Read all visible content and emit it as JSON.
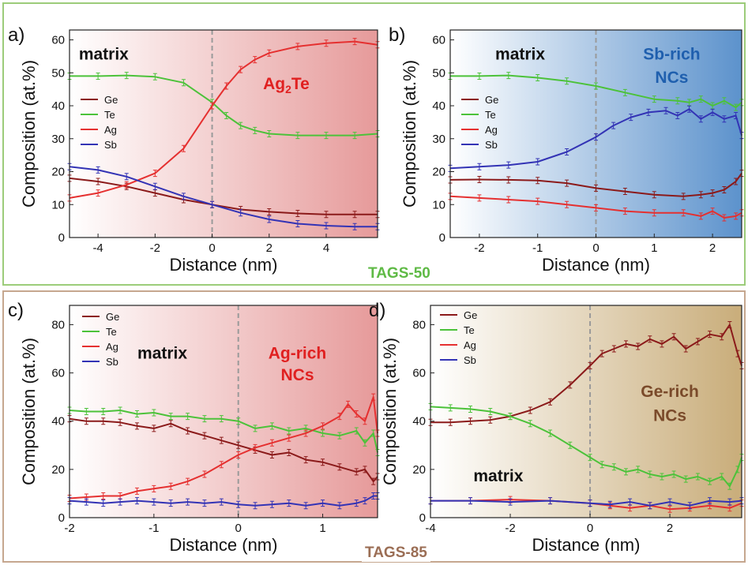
{
  "groups": [
    {
      "label": "TAGS-50",
      "color": "#5fba46"
    },
    {
      "label": "TAGS-85",
      "color": "#9b6e55"
    }
  ],
  "colors": {
    "Ge": "#8b1a1a",
    "Te": "#4cc23a",
    "Ag": "#e53030",
    "Sb": "#3333b5",
    "divider": "#9a9a9a"
  },
  "chart_data": [
    {
      "panel": "a)",
      "type": "line",
      "xlabel": "Distance (nm)",
      "ylabel": "Composition (at.%)",
      "xlim": [
        -5,
        5.8
      ],
      "ylim": [
        0,
        63
      ],
      "xticks": [
        -4,
        -2,
        0,
        2,
        4
      ],
      "yticks": [
        0,
        10,
        20,
        30,
        40,
        50,
        60
      ],
      "background": {
        "left": "#ffffff",
        "right": "#e69a9a"
      },
      "annotations": [
        {
          "text": "matrix",
          "x": -3.8,
          "y": 54,
          "color": "#111111"
        },
        {
          "text": "Ag",
          "sub": "2",
          "tail": "Te",
          "x": 2.6,
          "y": 45,
          "color": "#e02020"
        }
      ],
      "legend": {
        "placement": "mid-left",
        "entries": [
          "Ge",
          "Te",
          "Ag",
          "Sb"
        ]
      },
      "series": [
        {
          "name": "Ge",
          "x": [
            -5,
            -4,
            -3,
            -2,
            -1,
            0,
            1,
            2,
            3,
            4,
            5,
            5.8
          ],
          "values": [
            18,
            17,
            15.5,
            13.5,
            11.5,
            10,
            8.5,
            7.8,
            7.3,
            7,
            7,
            7
          ]
        },
        {
          "name": "Te",
          "x": [
            -5,
            -4,
            -3,
            -2,
            -1,
            0,
            0.5,
            1,
            1.5,
            2,
            3,
            4,
            5,
            5.8
          ],
          "values": [
            49,
            49,
            49.2,
            48.8,
            47,
            41,
            37,
            34,
            32.5,
            31.5,
            31,
            31,
            31,
            31.5
          ]
        },
        {
          "name": "Ag",
          "x": [
            -5,
            -4,
            -3,
            -2,
            -1,
            0,
            0.5,
            1,
            1.5,
            2,
            3,
            4,
            5,
            5.8
          ],
          "values": [
            12,
            13.5,
            16,
            19.5,
            27,
            40,
            46,
            51,
            54,
            56,
            58,
            59,
            59.5,
            58.5
          ]
        },
        {
          "name": "Sb",
          "x": [
            -5,
            -4,
            -3,
            -2,
            -1,
            0,
            1,
            2,
            3,
            4,
            5,
            5.8
          ],
          "values": [
            21.5,
            20.5,
            18.5,
            15.5,
            12.5,
            10,
            7.5,
            5.5,
            4.2,
            3.6,
            3.3,
            3.3
          ]
        }
      ]
    },
    {
      "panel": "b)",
      "type": "line",
      "xlabel": "Distance (nm)",
      "ylabel": "Composition (at.%)",
      "xlim": [
        -2.5,
        2.5
      ],
      "ylim": [
        0,
        63
      ],
      "xticks": [
        -2,
        -1,
        0,
        1,
        2
      ],
      "yticks": [
        0,
        10,
        20,
        30,
        40,
        50,
        60
      ],
      "background": {
        "left": "#ffffff",
        "right": "#5c92cc"
      },
      "annotations": [
        {
          "text": "matrix",
          "x": -1.3,
          "y": 54,
          "color": "#111111"
        },
        {
          "text": "Sb-rich",
          "x": 1.3,
          "y": 54,
          "color": "#1f5fae"
        },
        {
          "text": "NCs",
          "x": 1.3,
          "y": 47,
          "color": "#1f5fae"
        }
      ],
      "legend": {
        "placement": "mid-left",
        "entries": [
          "Ge",
          "Te",
          "Ag",
          "Sb"
        ]
      },
      "series": [
        {
          "name": "Ge",
          "x": [
            -2.5,
            -2,
            -1.5,
            -1,
            -0.5,
            0,
            0.5,
            1,
            1.5,
            1.8,
            2,
            2.2,
            2.4,
            2.5
          ],
          "values": [
            17.5,
            17.6,
            17.5,
            17.3,
            16.5,
            15,
            14,
            13,
            12.5,
            13,
            13.5,
            14.5,
            17,
            19.5
          ]
        },
        {
          "name": "Te",
          "x": [
            -2.5,
            -2,
            -1.5,
            -1,
            -0.5,
            0,
            0.5,
            1,
            1.4,
            1.6,
            1.8,
            2,
            2.2,
            2.4,
            2.5
          ],
          "values": [
            49,
            49,
            49.2,
            48.5,
            47.5,
            46,
            44,
            42,
            41.5,
            41,
            42,
            40,
            41.5,
            39.5,
            41
          ]
        },
        {
          "name": "Ag",
          "x": [
            -2.5,
            -2,
            -1.5,
            -1,
            -0.5,
            0,
            0.5,
            1,
            1.5,
            1.8,
            2,
            2.2,
            2.4,
            2.5
          ],
          "values": [
            12.5,
            12,
            11.5,
            11,
            10,
            9,
            8,
            7.5,
            7.5,
            6.5,
            8,
            6,
            6.5,
            7.5
          ]
        },
        {
          "name": "Sb",
          "x": [
            -2.5,
            -2,
            -1.5,
            -1,
            -0.5,
            0,
            0.3,
            0.6,
            0.9,
            1.2,
            1.4,
            1.6,
            1.8,
            2,
            2.2,
            2.4,
            2.5
          ],
          "values": [
            21,
            21.5,
            22,
            23,
            26,
            30.5,
            34,
            36.5,
            38,
            38.5,
            37,
            39,
            36,
            38,
            36,
            37,
            31
          ]
        }
      ]
    },
    {
      "panel": "c)",
      "type": "line",
      "xlabel": "Distance (nm)",
      "ylabel": "Composition (at.%)",
      "xlim": [
        -2,
        1.65
      ],
      "ylim": [
        0,
        88
      ],
      "xticks": [
        -2,
        -1,
        0,
        1
      ],
      "yticks": [
        0,
        20,
        40,
        60,
        80
      ],
      "background": {
        "left": "#ffffff",
        "right": "#e69a9a"
      },
      "annotations": [
        {
          "text": "matrix",
          "x": -0.9,
          "y": 66,
          "color": "#111111"
        },
        {
          "text": "Ag-rich",
          "x": 0.7,
          "y": 66,
          "color": "#e02020"
        },
        {
          "text": "NCs",
          "x": 0.7,
          "y": 57,
          "color": "#e02020"
        }
      ],
      "legend": {
        "placement": "top-left",
        "entries": [
          "Ge",
          "Te",
          "Ag",
          "Sb"
        ]
      },
      "series": [
        {
          "name": "Ge",
          "x": [
            -2,
            -1.8,
            -1.6,
            -1.4,
            -1.2,
            -1,
            -0.8,
            -0.6,
            -0.4,
            -0.2,
            0,
            0.2,
            0.4,
            0.6,
            0.8,
            1,
            1.2,
            1.4,
            1.5,
            1.6,
            1.65
          ],
          "values": [
            41,
            40,
            40,
            39.5,
            38,
            37,
            39,
            36,
            34,
            32,
            30,
            28,
            26,
            27,
            24,
            23,
            21,
            19,
            20,
            15,
            17
          ]
        },
        {
          "name": "Te",
          "x": [
            -2,
            -1.8,
            -1.6,
            -1.4,
            -1.2,
            -1,
            -0.8,
            -0.6,
            -0.4,
            -0.2,
            0,
            0.2,
            0.4,
            0.6,
            0.8,
            1,
            1.2,
            1.4,
            1.5,
            1.6,
            1.65
          ],
          "values": [
            44.5,
            44,
            44,
            44.5,
            43,
            43.5,
            42,
            42,
            41,
            41,
            40,
            37,
            38,
            36,
            37,
            35,
            34,
            36,
            31,
            35,
            27
          ]
        },
        {
          "name": "Ag",
          "x": [
            -2,
            -1.8,
            -1.6,
            -1.4,
            -1.2,
            -1,
            -0.8,
            -0.6,
            -0.4,
            -0.2,
            0,
            0.2,
            0.4,
            0.6,
            0.8,
            1,
            1.2,
            1.3,
            1.4,
            1.5,
            1.6,
            1.65
          ],
          "values": [
            8,
            8.5,
            9,
            9,
            11,
            12,
            13,
            15,
            18,
            22,
            26,
            29,
            31,
            33,
            35,
            38,
            42,
            47,
            43,
            40,
            50,
            35
          ]
        },
        {
          "name": "Sb",
          "x": [
            -2,
            -1.8,
            -1.6,
            -1.4,
            -1.2,
            -1,
            -0.8,
            -0.6,
            -0.4,
            -0.2,
            0,
            0.2,
            0.4,
            0.6,
            0.8,
            1,
            1.2,
            1.4,
            1.5,
            1.6,
            1.65
          ],
          "values": [
            7,
            6.5,
            6,
            6.5,
            7,
            6.5,
            6,
            6.5,
            6,
            6.5,
            5.5,
            5,
            5.5,
            6,
            5,
            6,
            5,
            6,
            7,
            9,
            9
          ]
        }
      ]
    },
    {
      "panel": "d)",
      "type": "line",
      "xlabel": "Distance (nm)",
      "ylabel": "Composition (at.%)",
      "xlim": [
        -4,
        3.8
      ],
      "ylim": [
        0,
        88
      ],
      "xticks": [
        -4,
        -2,
        0,
        2
      ],
      "yticks": [
        0,
        20,
        40,
        60,
        80
      ],
      "background": {
        "left": "#ffffff",
        "right": "#c9ad7a"
      },
      "annotations": [
        {
          "text": "Ge-rich",
          "x": 2.0,
          "y": 50,
          "color": "#7a4a2a"
        },
        {
          "text": "NCs",
          "x": 2.0,
          "y": 40,
          "color": "#7a4a2a"
        },
        {
          "text": "matrix",
          "x": -2.3,
          "y": 15,
          "color": "#111111"
        }
      ],
      "legend": {
        "placement": "top-left",
        "entries": [
          "Ge",
          "Te",
          "Ag",
          "Sb"
        ]
      },
      "series": [
        {
          "name": "Ge",
          "x": [
            -4,
            -3.5,
            -3,
            -2.5,
            -2,
            -1.5,
            -1,
            -0.5,
            0,
            0.3,
            0.6,
            0.9,
            1.2,
            1.5,
            1.8,
            2.1,
            2.4,
            2.7,
            3,
            3.3,
            3.5,
            3.7,
            3.8
          ],
          "values": [
            39.5,
            39.5,
            40,
            40.5,
            42,
            44.5,
            48,
            55,
            63,
            68,
            70,
            72,
            71,
            74,
            72,
            75,
            70,
            73,
            76,
            75,
            80,
            68,
            63
          ]
        },
        {
          "name": "Te",
          "x": [
            -4,
            -3.5,
            -3,
            -2.5,
            -2,
            -1.5,
            -1,
            -0.5,
            0,
            0.3,
            0.6,
            0.9,
            1.2,
            1.5,
            1.8,
            2.1,
            2.4,
            2.7,
            3,
            3.3,
            3.5,
            3.7,
            3.8
          ],
          "values": [
            46,
            45.5,
            45,
            44,
            42,
            39,
            35,
            30,
            25,
            22,
            21,
            19,
            20,
            18,
            17,
            18,
            16,
            17,
            15,
            17,
            13,
            20,
            25
          ]
        },
        {
          "name": "Ag",
          "x": [
            -4,
            -3,
            -2,
            -1,
            0,
            0.5,
            1,
            1.5,
            2,
            2.5,
            3,
            3.5,
            3.8
          ],
          "values": [
            7,
            7,
            7.5,
            7,
            6,
            5,
            4,
            5,
            3.5,
            4,
            5,
            4,
            6
          ]
        },
        {
          "name": "Sb",
          "x": [
            -4,
            -3,
            -2,
            -1,
            0,
            0.5,
            1,
            1.5,
            2,
            2.5,
            3,
            3.5,
            3.8
          ],
          "values": [
            7,
            7,
            6.5,
            7,
            6,
            5.5,
            6.5,
            5,
            6.5,
            5,
            7,
            6.5,
            7
          ]
        }
      ]
    }
  ]
}
